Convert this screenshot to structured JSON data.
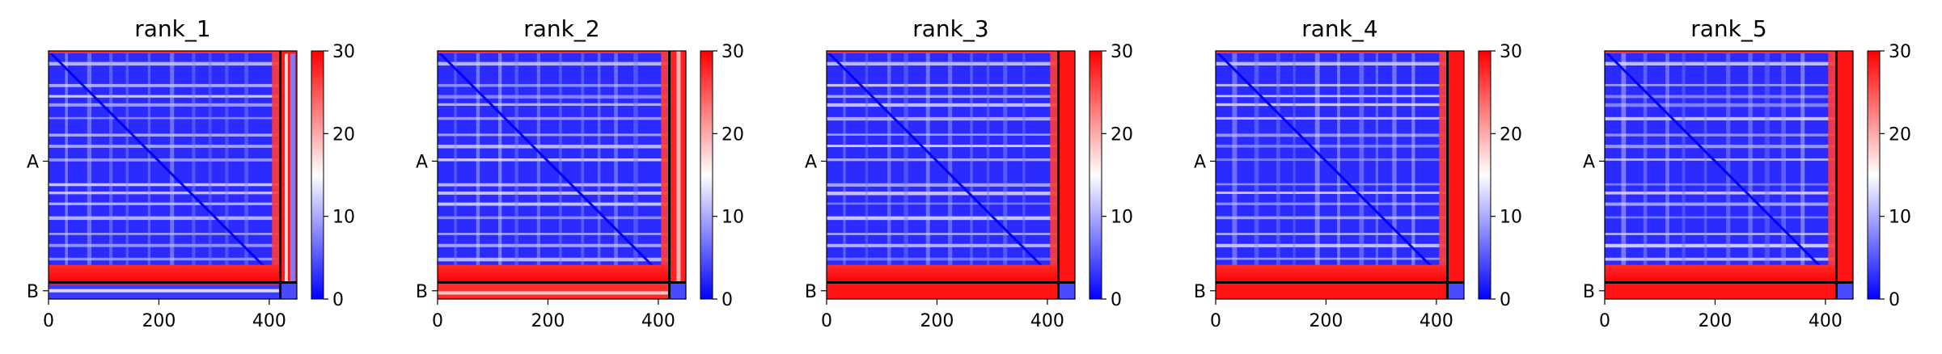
{
  "chart_data": [
    {
      "type": "heatmap",
      "title": "rank_1",
      "x_ticks": [
        0,
        200,
        400
      ],
      "y_ticks": [
        {
          "label": "A",
          "value": 200
        },
        {
          "label": "B",
          "value": 435
        }
      ],
      "chain_boundary": 420,
      "length": 450,
      "offchain_level": "mixed",
      "colorbar": {
        "min": 0,
        "max": 30,
        "ticks": [
          0,
          10,
          20,
          30
        ],
        "colormap": "bwr"
      }
    },
    {
      "type": "heatmap",
      "title": "rank_2",
      "x_ticks": [
        0,
        200,
        400
      ],
      "y_ticks": [
        {
          "label": "A",
          "value": 200
        },
        {
          "label": "B",
          "value": 435
        }
      ],
      "chain_boundary": 420,
      "length": 450,
      "offchain_level": "mostly-high",
      "colorbar": {
        "min": 0,
        "max": 30,
        "ticks": [
          0,
          10,
          20,
          30
        ],
        "colormap": "bwr"
      }
    },
    {
      "type": "heatmap",
      "title": "rank_3",
      "x_ticks": [
        0,
        200,
        400
      ],
      "y_ticks": [
        {
          "label": "A",
          "value": 200
        },
        {
          "label": "B",
          "value": 435
        }
      ],
      "chain_boundary": 420,
      "length": 450,
      "offchain_level": "high",
      "colorbar": {
        "min": 0,
        "max": 30,
        "ticks": [
          0,
          10,
          20,
          30
        ],
        "colormap": "bwr"
      }
    },
    {
      "type": "heatmap",
      "title": "rank_4",
      "x_ticks": [
        0,
        200,
        400
      ],
      "y_ticks": [
        {
          "label": "A",
          "value": 200
        },
        {
          "label": "B",
          "value": 435
        }
      ],
      "chain_boundary": 420,
      "length": 450,
      "offchain_level": "high",
      "colorbar": {
        "min": 0,
        "max": 30,
        "ticks": [
          0,
          10,
          20,
          30
        ],
        "colormap": "bwr"
      }
    },
    {
      "type": "heatmap",
      "title": "rank_5",
      "x_ticks": [
        0,
        200,
        400
      ],
      "y_ticks": [
        {
          "label": "A",
          "value": 200
        },
        {
          "label": "B",
          "value": 435
        }
      ],
      "chain_boundary": 420,
      "length": 450,
      "offchain_level": "high",
      "colorbar": {
        "min": 0,
        "max": 30,
        "ticks": [
          0,
          10,
          20,
          30
        ],
        "colormap": "bwr"
      }
    }
  ]
}
